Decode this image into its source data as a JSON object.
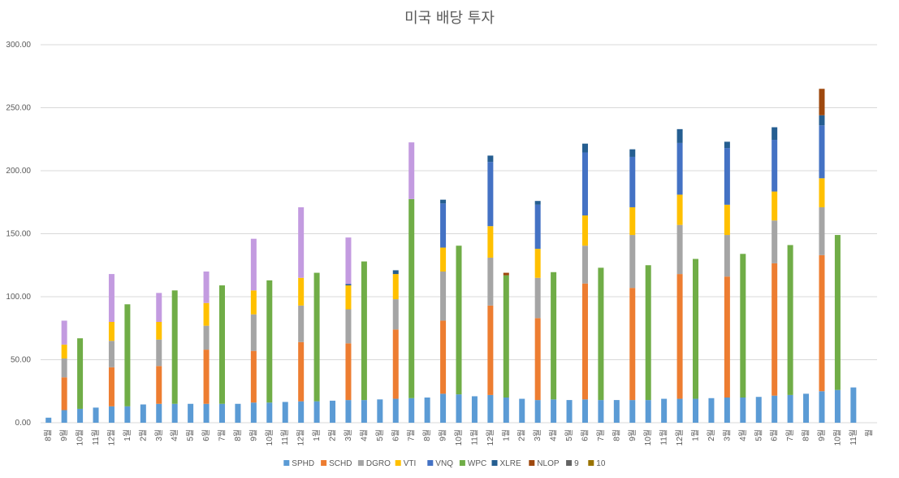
{
  "chart_data": {
    "type": "bar",
    "stacked": true,
    "title": "미국 배당 투자",
    "xlabel": "",
    "ylabel": "",
    "ylim": [
      0,
      300
    ],
    "yticks": [
      "0.00",
      "50.00",
      "100.00",
      "150.00",
      "200.00",
      "250.00",
      "300.00"
    ],
    "grid": true,
    "legend_position": "bottom",
    "categories": [
      "8월",
      "9월",
      "10월",
      "11월",
      "12월",
      "1월",
      "2월",
      "3월",
      "4월",
      "5월",
      "6월",
      "7월",
      "8월",
      "9월",
      "10월",
      "11월",
      "12월",
      "1월",
      "2월",
      "3월",
      "4월",
      "5월",
      "6월",
      "7월",
      "8월",
      "9월",
      "10월",
      "11월",
      "12월",
      "1월",
      "2월",
      "3월",
      "4월",
      "5월",
      "6월",
      "7월",
      "8월",
      "9월",
      "10월",
      "11월",
      "12월",
      "1월",
      "2월",
      "3월",
      "4월",
      "5월",
      "6월",
      "7월",
      "8월",
      "9월",
      "10월",
      "11월",
      "월"
    ],
    "series": [
      {
        "name": "SPHD",
        "color": "#5b9bd5",
        "values": [
          4,
          10,
          11,
          12,
          13,
          13,
          14.5,
          15,
          15,
          15,
          15,
          15,
          15,
          16,
          16,
          16.5,
          17,
          17,
          17.5,
          18,
          18,
          18.5,
          19,
          19.5,
          20,
          23,
          22.5,
          21,
          22,
          20,
          19,
          18,
          18.5,
          18,
          18.5,
          18,
          18,
          18,
          18,
          19,
          19,
          19,
          19.5,
          20,
          20,
          20.5,
          21.5,
          22,
          23,
          25,
          26,
          28,
          0
        ]
      },
      {
        "name": "SCHD",
        "color": "#ed7d31",
        "values": [
          0,
          26,
          0,
          0,
          31,
          0,
          0,
          30,
          0,
          0,
          43,
          0,
          0,
          41,
          0,
          0,
          47,
          0,
          0,
          45,
          0,
          0,
          55,
          0,
          0,
          58,
          0,
          0,
          71,
          0,
          0,
          65,
          0,
          0,
          92,
          0,
          0,
          89,
          0,
          0,
          99,
          0,
          0,
          96,
          0,
          0,
          105,
          0,
          0,
          108,
          0,
          0,
          0
        ]
      },
      {
        "name": "DGRO",
        "color": "#a5a5a5",
        "values": [
          0,
          15,
          0,
          0,
          21,
          0,
          0,
          21,
          0,
          0,
          19,
          0,
          0,
          29,
          0,
          0,
          29,
          0,
          0,
          27,
          0,
          0,
          24,
          0,
          0,
          39,
          0,
          0,
          38,
          0,
          0,
          32,
          0,
          0,
          30,
          0,
          0,
          42,
          0,
          0,
          39,
          0,
          0,
          33,
          0,
          0,
          34,
          0,
          0,
          38,
          0,
          0,
          0
        ]
      },
      {
        "name": "VTI",
        "color": "#ffc000",
        "values": [
          0,
          11,
          0,
          0,
          15,
          0,
          0,
          14,
          0,
          0,
          18,
          0,
          0,
          19,
          0,
          0,
          22,
          0,
          0,
          19,
          0,
          0,
          20,
          0,
          0,
          19,
          0,
          0,
          25,
          0,
          0,
          23,
          0,
          0,
          24,
          0,
          0,
          22,
          0,
          0,
          24,
          0,
          0,
          24,
          0,
          0,
          23,
          0,
          0,
          23,
          0,
          0,
          0
        ]
      },
      {
        "name": "VNQ",
        "color": "#4472c4",
        "values": [
          0,
          0,
          0,
          0,
          0,
          0,
          0,
          0,
          0,
          0,
          0,
          0,
          0,
          0,
          0,
          0,
          0,
          0,
          0,
          0,
          0,
          0,
          0,
          0,
          0,
          35,
          0,
          0,
          51,
          0,
          0,
          35,
          0,
          0,
          50,
          0,
          0,
          40,
          0,
          0,
          41,
          0,
          0,
          45,
          0,
          0,
          41,
          0,
          0,
          42,
          0,
          0,
          0
        ]
      },
      {
        "name": "WPC",
        "color": "#70ad47",
        "values": [
          0,
          0,
          56,
          0,
          0,
          81,
          0,
          0,
          90,
          0,
          0,
          94,
          0,
          0,
          97,
          0,
          0,
          102,
          0,
          0,
          110,
          0,
          0,
          158,
          0,
          0,
          118,
          0,
          0,
          97,
          0,
          0,
          101,
          0,
          0,
          105,
          0,
          0,
          107,
          0,
          0,
          111,
          0,
          0,
          114,
          0,
          0,
          119,
          0,
          0,
          123,
          0,
          0
        ]
      },
      {
        "name": "XLRE",
        "color": "#255e91",
        "values": [
          0,
          0,
          0,
          0,
          0,
          0,
          0,
          0,
          0,
          0,
          0,
          0,
          0,
          0,
          0,
          0,
          0,
          0,
          0,
          1,
          0,
          0,
          3,
          0,
          0,
          3,
          0,
          0,
          5,
          0,
          0,
          3,
          0,
          0,
          7,
          0,
          0,
          6,
          0,
          0,
          11,
          0,
          0,
          5,
          0,
          0,
          10,
          0,
          0,
          8,
          0,
          0,
          0
        ]
      },
      {
        "name": "NLOP",
        "color": "#9e480e",
        "values": [
          0,
          0,
          0,
          0,
          0,
          0,
          0,
          0,
          0,
          0,
          0,
          0,
          0,
          0,
          0,
          0,
          0,
          0,
          0,
          0,
          0,
          0,
          0,
          0,
          0,
          0,
          0,
          0,
          0,
          2,
          0,
          0,
          0,
          0,
          0,
          0,
          0,
          0,
          0,
          0,
          0,
          0,
          0,
          0,
          0,
          0,
          0,
          0,
          0,
          21,
          0,
          0,
          0
        ]
      },
      {
        "name": "9",
        "color": "#636363",
        "values": [
          0,
          0,
          0,
          0,
          0,
          0,
          0,
          0,
          0,
          0,
          0,
          0,
          0,
          0,
          0,
          0,
          0,
          0,
          0,
          0,
          0,
          0,
          0,
          0,
          0,
          0,
          0,
          0,
          0,
          0,
          0,
          0,
          0,
          0,
          0,
          0,
          0,
          0,
          0,
          0,
          0,
          0,
          0,
          0,
          0,
          0,
          0,
          0,
          0,
          0,
          0,
          0,
          0
        ]
      },
      {
        "name": "10",
        "color": "#997300",
        "values": [
          0,
          0,
          0,
          0,
          0,
          0,
          0,
          0,
          0,
          0,
          0,
          0,
          0,
          0,
          0,
          0,
          0,
          0,
          0,
          0,
          0,
          0,
          0,
          0,
          0,
          0,
          0,
          0,
          0,
          0,
          0,
          0,
          0,
          0,
          0,
          0,
          0,
          0,
          0,
          0,
          0,
          0,
          0,
          0,
          0,
          0,
          0,
          0,
          0,
          0,
          0,
          0,
          0
        ]
      },
      {
        "name": "",
        "color": "#c39be0",
        "values": [
          0,
          19,
          0,
          0,
          38,
          0,
          0,
          23,
          0,
          0,
          25,
          0,
          0,
          41,
          0,
          0,
          56,
          0,
          0,
          37,
          0,
          0,
          0,
          45,
          0,
          0,
          0,
          0,
          0,
          0,
          0,
          0,
          0,
          0,
          0,
          0,
          0,
          0,
          0,
          0,
          0,
          0,
          0,
          0,
          0,
          0,
          0,
          0,
          0,
          0,
          0,
          0,
          0
        ]
      }
    ]
  }
}
